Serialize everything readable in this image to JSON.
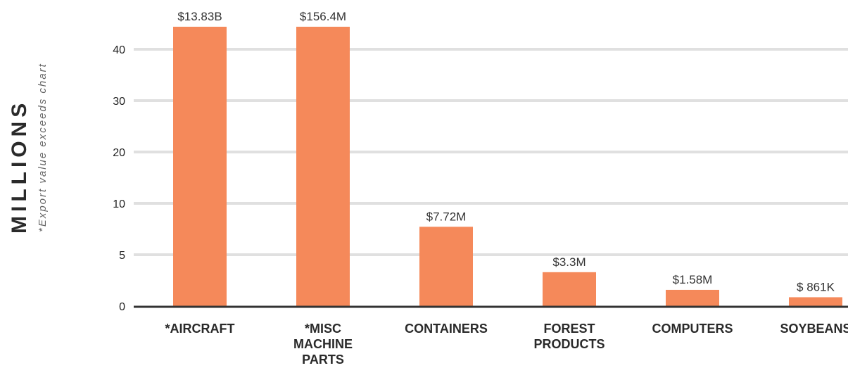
{
  "chart_data": {
    "type": "bar",
    "title": "",
    "ylabel": "MILLIONS",
    "ylabel_note": "*Export value exceeds chart",
    "categories": [
      [
        "*AIRCRAFT"
      ],
      [
        "*MISC",
        "MACHINE",
        "PARTS"
      ],
      [
        "CONTAINERS"
      ],
      [
        "FOREST",
        "PRODUCTS"
      ],
      [
        "COMPUTERS"
      ],
      [
        "SOYBEANS"
      ]
    ],
    "values": [
      13830,
      156.4,
      7.72,
      3.3,
      1.58,
      0.861
    ],
    "data_labels": [
      "$13.83B",
      "$156.4M",
      "$7.72M",
      "$3.3M",
      "$1.58M",
      "$ 861K"
    ],
    "exceeds_chart": [
      true,
      true,
      false,
      false,
      false,
      false
    ],
    "yticks": [
      0,
      5,
      10,
      20,
      30,
      40
    ],
    "ytick_labels": [
      "0",
      "5",
      "10",
      "20",
      "30",
      "40"
    ],
    "ylim": [
      0,
      45
    ],
    "grid": true,
    "colors": {
      "bar": "#F5895A",
      "grid": "#e0e0e0",
      "axis": "#333333"
    }
  }
}
